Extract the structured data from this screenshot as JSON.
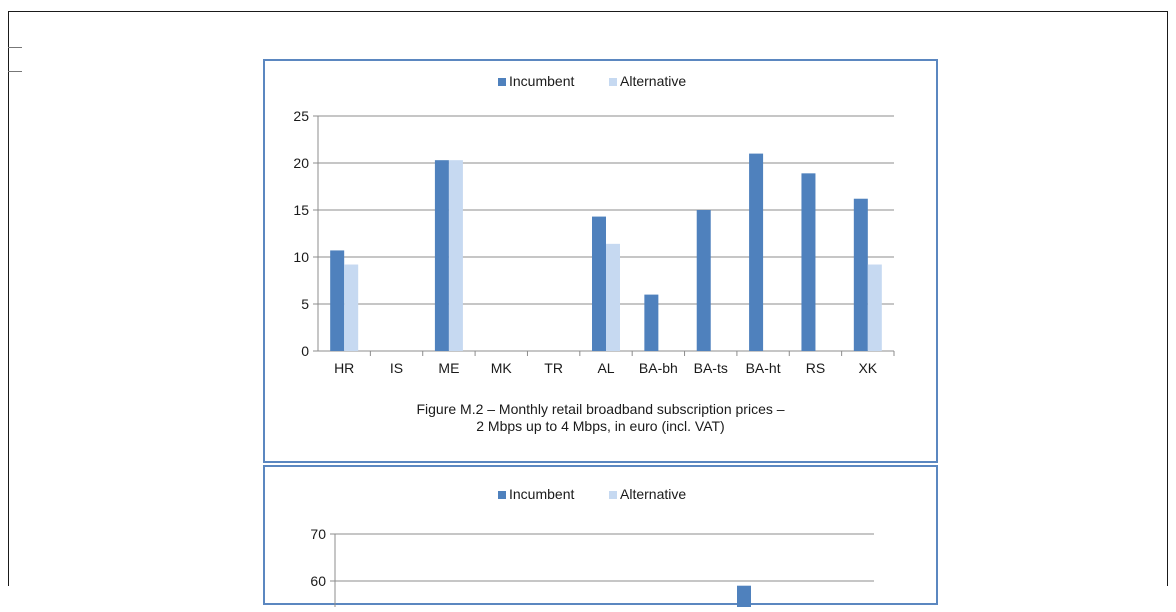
{
  "chart_data": [
    {
      "type": "bar",
      "categories": [
        "HR",
        "IS",
        "ME",
        "MK",
        "TR",
        "AL",
        "BA-bh",
        "BA-ts",
        "BA-ht",
        "RS",
        "XK"
      ],
      "series": [
        {
          "name": "Incumbent",
          "color": "#4f81bd",
          "values": [
            10.7,
            null,
            20.3,
            null,
            null,
            14.3,
            6.0,
            15.0,
            21.0,
            18.9,
            16.2
          ]
        },
        {
          "name": "Alternative",
          "color": "#c6d9f1",
          "values": [
            9.2,
            null,
            20.3,
            null,
            null,
            11.4,
            null,
            null,
            null,
            null,
            9.2
          ]
        }
      ],
      "ylim": [
        0,
        25
      ],
      "yticks": [
        0,
        5,
        10,
        15,
        20,
        25
      ],
      "grid": true,
      "legend": "top-center",
      "caption": [
        "Figure M.2 – Monthly retail broadband subscription prices –",
        "2 Mbps up to 4 Mbps, in euro (incl. VAT)"
      ]
    },
    {
      "type": "bar",
      "series": [
        {
          "name": "Incumbent",
          "color": "#4f81bd"
        },
        {
          "name": "Alternative",
          "color": "#c6d9f1"
        }
      ],
      "ylim": [
        0,
        70
      ],
      "yticks": [
        60,
        70
      ],
      "grid": true,
      "legend": "top-center",
      "visible_bar_top": 59
    }
  ]
}
